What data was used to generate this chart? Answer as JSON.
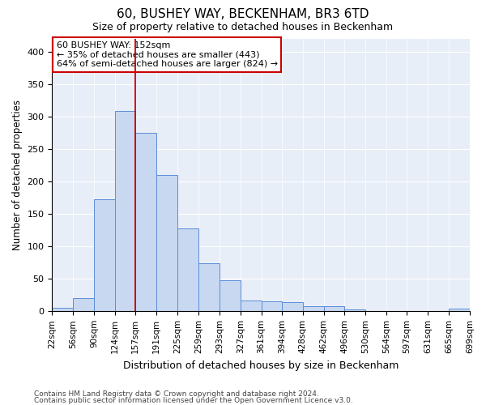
{
  "title": "60, BUSHEY WAY, BECKENHAM, BR3 6TD",
  "subtitle": "Size of property relative to detached houses in Beckenham",
  "xlabel": "Distribution of detached houses by size in Beckenham",
  "ylabel": "Number of detached properties",
  "bar_color": "#c8d8f0",
  "bar_edge_color": "#5b8dd9",
  "background_color": "#e8eef8",
  "fig_background": "#ffffff",
  "grid_color": "#ffffff",
  "vline_x": 157,
  "vline_color": "#cc0000",
  "bin_edges": [
    22,
    56,
    90,
    124,
    157,
    191,
    225,
    259,
    293,
    327,
    361,
    394,
    428,
    462,
    496,
    530,
    564,
    597,
    631,
    665,
    699
  ],
  "bar_heights": [
    5,
    20,
    173,
    308,
    275,
    210,
    127,
    74,
    48,
    16,
    15,
    14,
    8,
    8,
    3,
    1,
    1,
    0,
    1,
    4
  ],
  "ylim": [
    0,
    420
  ],
  "yticks": [
    0,
    50,
    100,
    150,
    200,
    250,
    300,
    350,
    400
  ],
  "annotation_title": "60 BUSHEY WAY: 152sqm",
  "annotation_line2": "← 35% of detached houses are smaller (443)",
  "annotation_line3": "64% of semi-detached houses are larger (824) →",
  "annotation_box_color": "#ffffff",
  "annotation_edge_color": "#cc0000",
  "footnote1": "Contains HM Land Registry data © Crown copyright and database right 2024.",
  "footnote2": "Contains public sector information licensed under the Open Government Licence v3.0.",
  "tick_labels": [
    "22sqm",
    "56sqm",
    "90sqm",
    "124sqm",
    "157sqm",
    "191sqm",
    "225sqm",
    "259sqm",
    "293sqm",
    "327sqm",
    "361sqm",
    "394sqm",
    "428sqm",
    "462sqm",
    "496sqm",
    "530sqm",
    "564sqm",
    "597sqm",
    "631sqm",
    "665sqm",
    "699sqm"
  ]
}
